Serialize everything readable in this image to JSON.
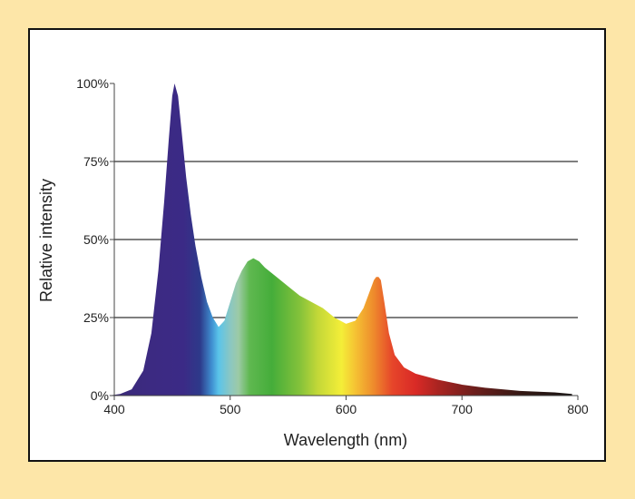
{
  "chart_data": {
    "type": "area",
    "title": "",
    "xlabel": "Wavelength (nm)",
    "ylabel": "Relative intensity",
    "xlim": [
      400,
      800
    ],
    "ylim": [
      0,
      100
    ],
    "x_ticks": [
      400,
      500,
      600,
      700,
      800
    ],
    "x_tick_labels": [
      "400",
      "500",
      "600",
      "700",
      "800"
    ],
    "y_ticks": [
      0,
      25,
      50,
      75,
      100
    ],
    "y_tick_labels": [
      "0%",
      "25%",
      "50%",
      "75%",
      "100%"
    ],
    "grid": "horizontal at 25%, 50%, 75%",
    "fill": "visible-spectrum colour gradient",
    "series": [
      {
        "x": [
          395,
          405,
          415,
          425,
          432,
          438,
          443,
          447,
          450,
          452,
          455,
          458,
          462,
          466,
          470,
          475,
          480,
          485,
          490,
          495,
          500,
          505,
          510,
          515,
          520,
          525,
          530,
          540,
          550,
          560,
          570,
          580,
          590,
          600,
          608,
          615,
          620,
          624,
          626,
          628,
          630,
          633,
          637,
          642,
          650,
          660,
          680,
          700,
          720,
          750,
          780,
          795
        ],
        "y": [
          0,
          0.5,
          2,
          8,
          20,
          40,
          62,
          82,
          96,
          100,
          96,
          85,
          70,
          58,
          48,
          38,
          30,
          25,
          22,
          24,
          30,
          36,
          40,
          43,
          44,
          43,
          41,
          38,
          35,
          32,
          30,
          28,
          25,
          23,
          24,
          28,
          33,
          37,
          38,
          38,
          37,
          30,
          20,
          13,
          9,
          7,
          5,
          3.5,
          2.5,
          1.5,
          1,
          0.5
        ]
      }
    ]
  }
}
